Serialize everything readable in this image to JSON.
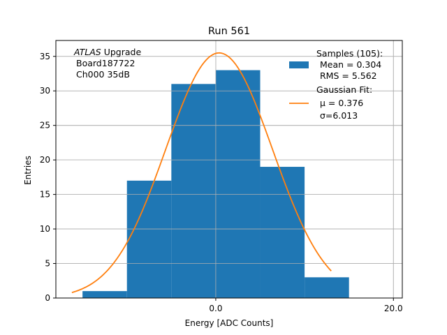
{
  "chart_data": {
    "type": "bar",
    "title": "Run 561",
    "xlabel": "Energy [ADC Counts]",
    "ylabel": "Entries",
    "xlim": [
      -18,
      21
    ],
    "ylim": [
      0,
      37.3
    ],
    "grid": true,
    "bin_edges": [
      -15,
      -10,
      -5,
      0,
      5,
      10,
      15
    ],
    "values": [
      1,
      17,
      31,
      33,
      19,
      3
    ],
    "x_ticks": [
      0,
      20
    ],
    "x_tick_labels": [
      "0.0",
      "20.0"
    ],
    "y_ticks": [
      0,
      5,
      10,
      15,
      20,
      25,
      30,
      35
    ],
    "y_tick_labels": [
      "0",
      "5",
      "10",
      "15",
      "20",
      "25",
      "30",
      "35"
    ],
    "bar_color": "#1f77b4",
    "fit": {
      "type": "gaussian",
      "mu": 0.376,
      "sigma": 6.013,
      "amplitude": 35.5,
      "x_range": [
        -16.2,
        13
      ],
      "color": "#ff7f0e"
    },
    "annotation": [
      "ATLAS",
      " Upgrade",
      "Board187722",
      "Ch000 35dB"
    ],
    "legend": {
      "placement": "top-right",
      "histogram_lines": [
        "Samples (105):",
        "Mean = 0.304",
        "RMS = 5.562"
      ],
      "fit_lines": [
        "Gaussian Fit:",
        "μ = 0.376",
        "σ=6.013"
      ]
    }
  }
}
